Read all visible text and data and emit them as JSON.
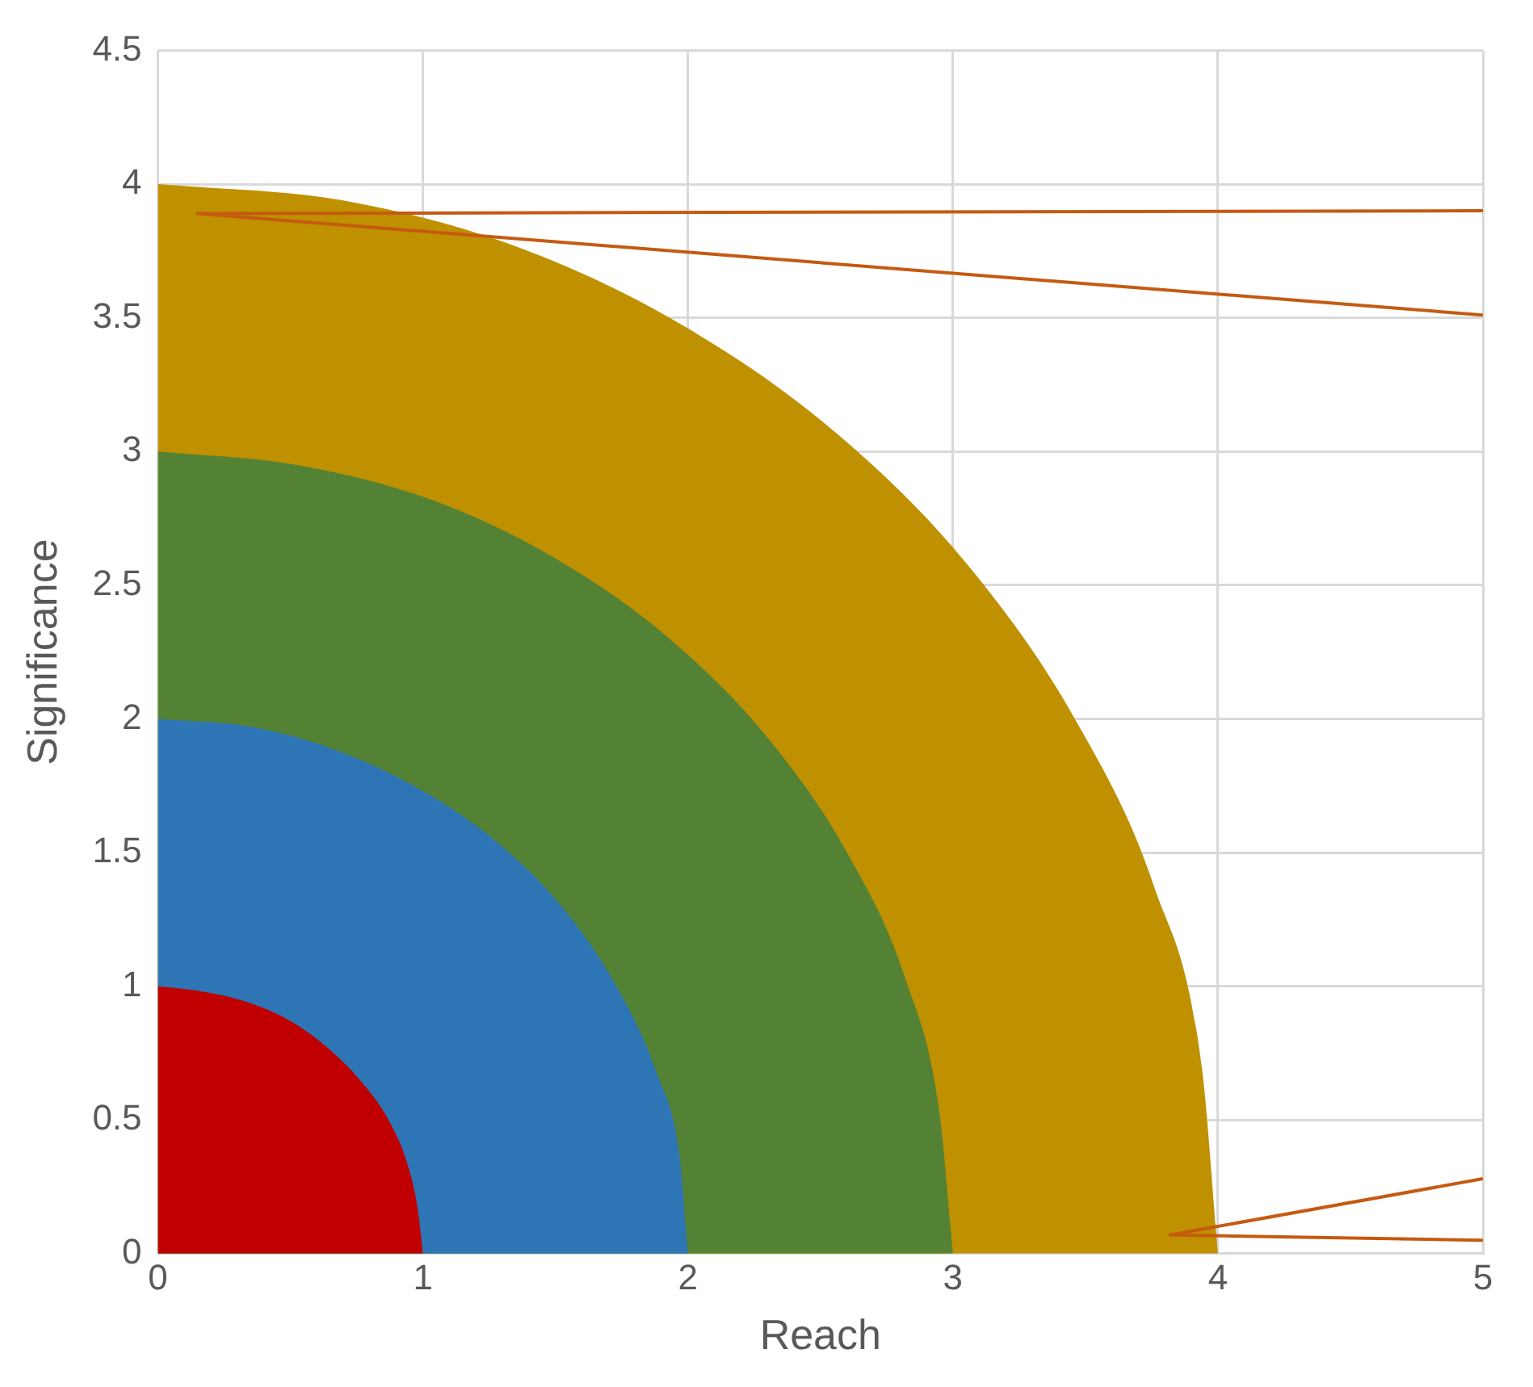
{
  "chart_data": {
    "type": "area",
    "xlabel": "Reach",
    "ylabel": "Significance",
    "xlim": [
      0,
      5
    ],
    "xticks": [
      0,
      1,
      2,
      3,
      4,
      5
    ],
    "ylim": [
      0,
      4.5
    ],
    "yticks": [
      0,
      0.5,
      1,
      1.5,
      2,
      2.5,
      3,
      3.5,
      4,
      4.5
    ],
    "grid": true,
    "legend": false,
    "marker": "none",
    "series": [
      {
        "color": "#c00000",
        "x": [
          0,
          0.17,
          0.34,
          0.5,
          0.64,
          0.77,
          0.87,
          0.94,
          0.98,
          1
        ],
        "values": [
          1,
          0.98,
          0.94,
          0.87,
          0.77,
          0.64,
          0.5,
          0.34,
          0.17,
          0
        ]
      },
      {
        "color": "#2e75b6",
        "x": [
          0,
          0.35,
          0.68,
          1,
          1.29,
          1.53,
          1.73,
          1.88,
          1.97,
          2
        ],
        "values": [
          2,
          1.97,
          1.88,
          1.73,
          1.53,
          1.29,
          1,
          0.68,
          0.35,
          0
        ]
      },
      {
        "color": "#548235",
        "x": [
          0,
          0.52,
          1.03,
          1.5,
          1.93,
          2.3,
          2.6,
          2.82,
          2.95,
          3
        ],
        "values": [
          3,
          2.95,
          2.82,
          2.6,
          2.3,
          1.93,
          1.5,
          1.03,
          0.52,
          0
        ]
      },
      {
        "color": "#bf9000",
        "x": [
          0,
          0.69,
          1.37,
          2,
          2.57,
          3.06,
          3.46,
          3.76,
          3.94,
          4
        ],
        "values": [
          4,
          3.94,
          3.76,
          3.46,
          3.06,
          2.57,
          2,
          1.37,
          0.69,
          0
        ]
      },
      {
        "type": "line",
        "line_style": "solid",
        "color": "#c55a11",
        "x": [
          5,
          0.15,
          5
        ],
        "values": [
          3.9,
          3.89,
          3.51
        ]
      },
      {
        "type": "line",
        "line_style": "solid",
        "color": "#c55a11",
        "x": [
          5,
          3.82,
          5
        ],
        "values": [
          0.28,
          0.07,
          0.05
        ]
      }
    ]
  }
}
